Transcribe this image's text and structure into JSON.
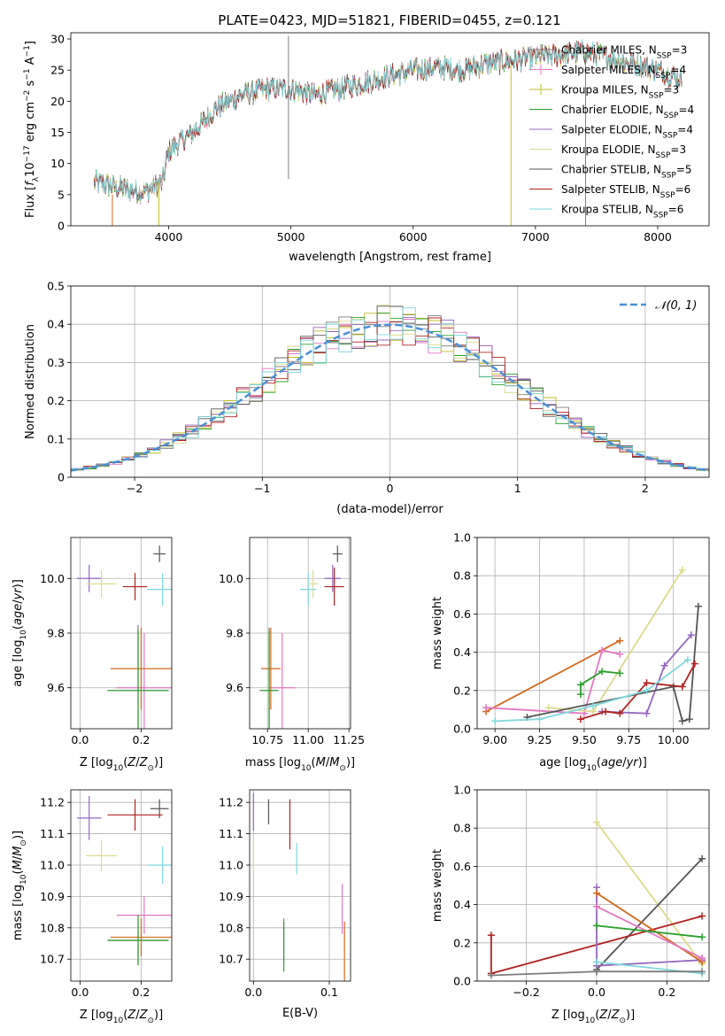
{
  "figure_title": "PLATE=0423, MJD=51821, FIBERID=0455, z=0.121",
  "colors": {
    "chabrier_miles": "#7f7f7f",
    "salpeter_miles": "#e377c2",
    "kroupa_miles": "#bcbd22",
    "chabrier_elodie": "#2ca02c",
    "salpeter_elodie": "#9467bd",
    "kroupa_elodie": "#dbdb8d",
    "chabrier_stelib": "#555555",
    "salpeter_stelib": "#b22222",
    "kroupa_stelib": "#7fd8dc",
    "gauss": "#4a90d9",
    "orange": "#d2691e"
  },
  "chart_data": [
    {
      "id": "spectrum",
      "type": "line",
      "title": "PLATE=0423, MJD=51821, FIBERID=0455, z=0.121",
      "xlabel": "wavelength [Angstrom, rest frame]",
      "ylabel": "Flux [f_λ 10^-17 erg cm^-2 s^-1 A^-1]",
      "xlim": [
        3200,
        8420
      ],
      "ylim": [
        0,
        31
      ],
      "xticks": [
        4000,
        5000,
        6000,
        7000,
        8000
      ],
      "yticks": [
        0,
        5,
        10,
        15,
        20,
        25,
        30
      ],
      "grid": false,
      "legend_position": "right",
      "continuum": {
        "x": [
          3400,
          3600,
          3800,
          3950,
          4000,
          4200,
          4400,
          4600,
          4800,
          5000,
          5200,
          5400,
          5600,
          5800,
          6000,
          6200,
          6400,
          6600,
          6800,
          7000,
          7200,
          7400,
          7600,
          7800,
          8000,
          8200
        ],
        "y": [
          7,
          6,
          5.5,
          7,
          12,
          15,
          19,
          21,
          22,
          22,
          21,
          22,
          23,
          24,
          25,
          25.5,
          25,
          26,
          26.5,
          27,
          27.5,
          28,
          27,
          26,
          25,
          23.5
        ]
      },
      "series": [
        {
          "name": "Chabrier MILES, N_SSP=3"
        },
        {
          "name": "Salpeter MILES, N_SSP=4"
        },
        {
          "name": "Kroupa MILES, N_SSP=3"
        },
        {
          "name": "Chabrier ELODIE, N_SSP=4"
        },
        {
          "name": "Salpeter ELODIE, N_SSP=4"
        },
        {
          "name": "Kroupa ELODIE, N_SSP=3"
        },
        {
          "name": "Chabrier STELIB, N_SSP=5"
        },
        {
          "name": "Salpeter STELIB, N_SSP=6"
        },
        {
          "name": "Kroupa STELIB, N_SSP=6"
        }
      ]
    },
    {
      "id": "residuals",
      "type": "line",
      "xlabel": "(data-model)/error",
      "ylabel": "Normed distribution",
      "xlim": [
        -2.5,
        2.5
      ],
      "ylim": [
        0,
        0.5
      ],
      "xticks": [
        -2,
        -1,
        0,
        1,
        2
      ],
      "yticks": [
        0.0,
        0.1,
        0.2,
        0.3,
        0.4,
        0.5
      ],
      "grid": true,
      "legend_position": "top-right",
      "gauss_label": "𝒩(0, 1)"
    },
    {
      "id": "age_vs_z",
      "type": "scatter",
      "xlabel": "Z [log10(Z/Z⊙)]",
      "ylabel": "age  [log10(age/yr)]",
      "xlim": [
        -0.03,
        0.3
      ],
      "ylim": [
        9.45,
        10.15
      ],
      "xticks": [
        0.0,
        0.2
      ],
      "yticks": [
        9.6,
        9.8,
        10.0
      ],
      "grid": true,
      "points": [
        {
          "series": "Chabrier MILES",
          "x": 0.19,
          "y": 9.59,
          "xerr": 0.1,
          "yerr": 0.24
        },
        {
          "series": "Salpeter MILES",
          "x": 0.21,
          "y": 9.6,
          "xerr": 0.09,
          "yerr": 0.2
        },
        {
          "series": "Kroupa MILES",
          "x": 0.2,
          "y": 9.67,
          "xerr": 0.1,
          "yerr": 0.15
        },
        {
          "series": "Chabrier ELODIE",
          "x": 0.19,
          "y": 9.59,
          "xerr": 0.1,
          "yerr": 0.22
        },
        {
          "series": "Salpeter ELODIE",
          "x": 0.03,
          "y": 10.0,
          "xerr": 0.04,
          "yerr": 0.05
        },
        {
          "series": "Kroupa ELODIE",
          "x": 0.07,
          "y": 9.98,
          "xerr": 0.05,
          "yerr": 0.05
        },
        {
          "series": "Chabrier STELIB",
          "x": 0.26,
          "y": 10.09,
          "xerr": 0.02,
          "yerr": 0.03
        },
        {
          "series": "Salpeter STELIB",
          "x": 0.18,
          "y": 9.97,
          "xerr": 0.04,
          "yerr": 0.05
        },
        {
          "series": "Kroupa STELIB",
          "x": 0.27,
          "y": 9.96,
          "xerr": 0.05,
          "yerr": 0.06
        }
      ]
    },
    {
      "id": "age_vs_mass",
      "type": "scatter",
      "xlabel": "mass [log10(M/M⊙)]",
      "ylabel": "",
      "xlim": [
        10.64,
        11.26
      ],
      "ylim": [
        9.45,
        10.15
      ],
      "xticks": [
        10.75,
        11.0,
        11.25
      ],
      "yticks": [
        9.6,
        9.8,
        10.0
      ],
      "grid": true,
      "points": [
        {
          "series": "Chabrier MILES",
          "x": 10.76,
          "y": 9.59,
          "xerr": 0.06,
          "yerr": 0.23
        },
        {
          "series": "Salpeter MILES",
          "x": 10.84,
          "y": 9.6,
          "xerr": 0.08,
          "yerr": 0.2
        },
        {
          "series": "Kroupa MILES",
          "x": 10.77,
          "y": 9.67,
          "xerr": 0.06,
          "yerr": 0.15
        },
        {
          "series": "Chabrier ELODIE",
          "x": 10.76,
          "y": 9.59,
          "xerr": 0.05,
          "yerr": 0.22
        },
        {
          "series": "Salpeter ELODIE",
          "x": 11.15,
          "y": 10.0,
          "xerr": 0.05,
          "yerr": 0.05
        },
        {
          "series": "Kroupa ELODIE",
          "x": 11.03,
          "y": 9.98,
          "xerr": 0.03,
          "yerr": 0.05
        },
        {
          "series": "Chabrier STELIB",
          "x": 11.18,
          "y": 10.09,
          "xerr": 0.03,
          "yerr": 0.03
        },
        {
          "series": "Salpeter STELIB",
          "x": 11.16,
          "y": 9.97,
          "xerr": 0.06,
          "yerr": 0.07
        },
        {
          "series": "Kroupa STELIB",
          "x": 11.0,
          "y": 9.96,
          "xerr": 0.05,
          "yerr": 0.06
        }
      ]
    },
    {
      "id": "mass_weight_vs_age",
      "type": "line",
      "xlabel": "age  [log10(age/yr)]",
      "ylabel": "mass weight",
      "xlim": [
        8.9,
        10.2
      ],
      "ylim": [
        0,
        1
      ],
      "xticks": [
        9.0,
        9.25,
        9.5,
        9.75,
        10.0
      ],
      "yticks": [
        0.0,
        0.2,
        0.4,
        0.6,
        0.8,
        1.0
      ],
      "grid": true,
      "series": [
        {
          "color": "orange",
          "x": [
            8.95,
            9.7
          ],
          "y": [
            0.09,
            0.46
          ]
        },
        {
          "color": "salpeter_miles",
          "x": [
            8.95,
            9.5,
            9.6,
            9.7
          ],
          "y": [
            0.11,
            0.08,
            0.41,
            0.39
          ]
        },
        {
          "color": "kroupa_elodie",
          "x": [
            9.3,
            9.55,
            10.05
          ],
          "y": [
            0.11,
            0.09,
            0.83
          ]
        },
        {
          "color": "chabrier_elodie",
          "x": [
            9.48,
            9.48,
            9.6,
            9.7
          ],
          "y": [
            0.18,
            0.23,
            0.3,
            0.29
          ]
        },
        {
          "color": "salpeter_elodie",
          "x": [
            9.6,
            9.85,
            9.95,
            10.1
          ],
          "y": [
            0.09,
            0.08,
            0.33,
            0.49
          ]
        },
        {
          "color": "chabrier_stelib",
          "x": [
            9.18,
            10.0,
            10.05,
            10.09,
            10.14
          ],
          "y": [
            0.06,
            0.22,
            0.04,
            0.05,
            0.64
          ]
        },
        {
          "color": "salpeter_stelib",
          "x": [
            9.48,
            9.62,
            9.7,
            9.85,
            10.05,
            10.12
          ],
          "y": [
            0.05,
            0.09,
            0.08,
            0.24,
            0.22,
            0.34
          ]
        },
        {
          "color": "kroupa_stelib",
          "x": [
            9.0,
            9.25,
            9.55,
            9.85,
            10.08
          ],
          "y": [
            0.04,
            0.05,
            0.12,
            0.2,
            0.36
          ]
        }
      ]
    },
    {
      "id": "mass_vs_z",
      "type": "scatter",
      "xlabel": "Z [log10(Z/Z⊙)]",
      "ylabel": "mass [log10(M/M⊙)]",
      "xlim": [
        -0.03,
        0.3
      ],
      "ylim": [
        10.63,
        11.24
      ],
      "xticks": [
        0.0,
        0.2
      ],
      "yticks": [
        10.7,
        10.8,
        10.9,
        11.0,
        11.1,
        11.2
      ],
      "grid": true,
      "points": [
        {
          "series": "Chabrier MILES",
          "x": 0.19,
          "y": 10.76,
          "xerr": 0.1,
          "yerr": 0.07
        },
        {
          "series": "Salpeter MILES",
          "x": 0.21,
          "y": 10.84,
          "xerr": 0.09,
          "yerr": 0.06
        },
        {
          "series": "Kroupa MILES",
          "x": 0.2,
          "y": 10.77,
          "xerr": 0.1,
          "yerr": 0.06
        },
        {
          "series": "Chabrier ELODIE",
          "x": 0.19,
          "y": 10.76,
          "xerr": 0.1,
          "yerr": 0.08
        },
        {
          "series": "Salpeter ELODIE",
          "x": 0.03,
          "y": 11.15,
          "xerr": 0.04,
          "yerr": 0.07
        },
        {
          "series": "Kroupa ELODIE",
          "x": 0.07,
          "y": 11.03,
          "xerr": 0.05,
          "yerr": 0.05
        },
        {
          "series": "Chabrier STELIB",
          "x": 0.26,
          "y": 11.18,
          "xerr": 0.03,
          "yerr": 0.03
        },
        {
          "series": "Salpeter STELIB",
          "x": 0.18,
          "y": 11.16,
          "xerr": 0.09,
          "yerr": 0.05
        },
        {
          "series": "Kroupa STELIB",
          "x": 0.27,
          "y": 11.0,
          "xerr": 0.05,
          "yerr": 0.06
        }
      ]
    },
    {
      "id": "mass_vs_ebv",
      "type": "scatter",
      "xlabel": "E(B-V)",
      "ylabel": "",
      "xlim": [
        -0.005,
        0.128
      ],
      "ylim": [
        10.63,
        11.24
      ],
      "xticks": [
        0.0,
        0.1
      ],
      "yticks": [
        10.7,
        10.8,
        10.9,
        11.0,
        11.1,
        11.2
      ],
      "grid": true,
      "points": [
        {
          "series": "Chabrier MILES",
          "x": 0.04,
          "y": 10.76,
          "xerr": 0,
          "yerr": 0.07
        },
        {
          "series": "Salpeter MILES",
          "x": 0.117,
          "y": 10.86,
          "xerr": 0,
          "yerr": 0.08
        },
        {
          "series": "Kroupa MILES",
          "x": 0.12,
          "y": 10.7,
          "xerr": 0,
          "yerr": 0.12
        },
        {
          "series": "Chabrier ELODIE",
          "x": 0.04,
          "y": 10.74,
          "xerr": 0,
          "yerr": 0.08
        },
        {
          "series": "Salpeter ELODIE",
          "x": 0.0,
          "y": 11.17,
          "xerr": 0,
          "yerr": 0.06
        },
        {
          "series": "Kroupa ELODIE",
          "x": 0.0,
          "y": 11.03,
          "xerr": 0,
          "yerr": 0.05
        },
        {
          "series": "Chabrier STELIB",
          "x": 0.02,
          "y": 11.17,
          "xerr": 0,
          "yerr": 0.04
        },
        {
          "series": "Salpeter STELIB",
          "x": 0.048,
          "y": 11.13,
          "xerr": 0,
          "yerr": 0.08
        },
        {
          "series": "Kroupa STELIB",
          "x": 0.057,
          "y": 11.02,
          "xerr": 0,
          "yerr": 0.05
        }
      ]
    },
    {
      "id": "mass_weight_vs_z",
      "type": "line",
      "xlabel": "Z [log10(Z/Z⊙)]",
      "ylabel": "mass weight",
      "xlim": [
        -0.34,
        0.32
      ],
      "ylim": [
        0,
        1
      ],
      "xticks": [
        -0.2,
        0.0,
        0.2
      ],
      "yticks": [
        0.0,
        0.2,
        0.4,
        0.6,
        0.8,
        1.0
      ],
      "grid": true,
      "series": [
        {
          "color": "kroupa_elodie",
          "x": [
            0.0,
            0.3
          ],
          "y": [
            0.83,
            0.09
          ]
        },
        {
          "color": "chabrier_stelib",
          "x": [
            0.0,
            0.0,
            0.3
          ],
          "y": [
            0.05,
            0.06,
            0.64
          ]
        },
        {
          "color": "salpeter_stelib",
          "x": [
            -0.3,
            -0.3,
            0.3
          ],
          "y": [
            0.24,
            0.04,
            0.34
          ]
        },
        {
          "color": "salpeter_elodie",
          "x": [
            0.0,
            0.0,
            0.3
          ],
          "y": [
            0.49,
            0.08,
            0.11
          ]
        },
        {
          "color": "orange",
          "x": [
            0.0,
            0.3
          ],
          "y": [
            0.46,
            0.1
          ]
        },
        {
          "color": "salpeter_miles",
          "x": [
            0.0,
            0.3
          ],
          "y": [
            0.39,
            0.12
          ]
        },
        {
          "color": "chabrier_elodie",
          "x": [
            0.0,
            0.3
          ],
          "y": [
            0.29,
            0.23
          ]
        },
        {
          "color": "kroupa_stelib",
          "x": [
            0.0,
            0.3
          ],
          "y": [
            0.1,
            0.04
          ]
        },
        {
          "color": "chabrier_miles",
          "x": [
            -0.3,
            0.0,
            0.3
          ],
          "y": [
            0.03,
            0.05,
            0.05
          ]
        }
      ]
    }
  ]
}
